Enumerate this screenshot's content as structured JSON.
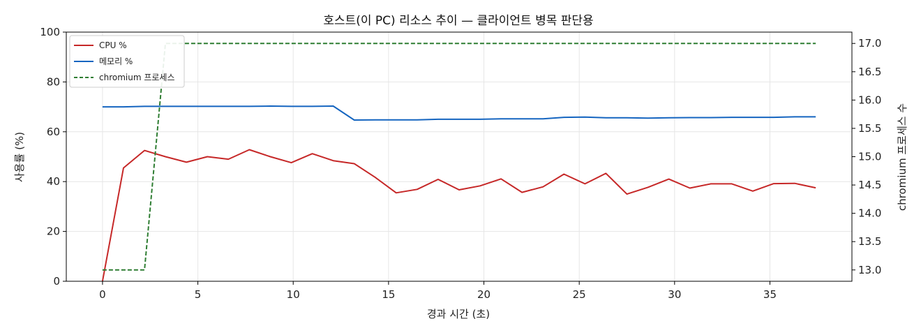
{
  "chart_data": {
    "type": "line",
    "title": "호스트(이 PC) 리소스 추이 — 클라이언트 병목 판단용",
    "xlabel": "경과 시간 (초)",
    "ylabel": "사용률 (%)",
    "y2label": "chromium 프로세스 수",
    "xlim": [
      -1.9,
      39.3
    ],
    "ylim": [
      0,
      100
    ],
    "y2lim": [
      12.8,
      17.2
    ],
    "xticks": [
      0,
      5,
      10,
      15,
      20,
      25,
      30,
      35
    ],
    "yticks": [
      0,
      20,
      40,
      60,
      80,
      100
    ],
    "y2ticks": [
      "13.0",
      "13.5",
      "14.0",
      "14.5",
      "15.0",
      "15.5",
      "16.0",
      "16.5",
      "17.0"
    ],
    "grid": true,
    "legend_position": "top-left",
    "series": [
      {
        "name": "CPU %",
        "axis": "left",
        "color": "#c62828",
        "dash": "solid",
        "x": [
          0,
          1.1,
          2.2,
          3.3,
          4.4,
          5.5,
          6.6,
          7.7,
          8.8,
          9.9,
          11.0,
          12.1,
          13.2,
          14.3,
          15.4,
          16.5,
          17.6,
          18.7,
          19.8,
          20.9,
          22.0,
          23.1,
          24.2,
          25.3,
          26.4,
          27.5,
          28.6,
          29.7,
          30.8,
          31.9,
          33.0,
          34.1,
          35.2,
          36.3,
          37.4
        ],
        "values": [
          0,
          45.5,
          52.5,
          50.0,
          47.8,
          50.0,
          49.0,
          52.8,
          50.0,
          47.6,
          51.2,
          48.4,
          47.2,
          41.7,
          35.5,
          36.9,
          40.9,
          36.7,
          38.3,
          41.1,
          35.7,
          37.9,
          43.0,
          39.1,
          43.3,
          35.0,
          37.7,
          41.0,
          37.4,
          39.1,
          39.1,
          36.2,
          39.2,
          39.3,
          37.5
        ]
      },
      {
        "name": "메모리 %",
        "axis": "left",
        "color": "#1565c0",
        "dash": "solid",
        "x": [
          0,
          1.1,
          2.2,
          3.3,
          4.4,
          5.5,
          6.6,
          7.7,
          8.8,
          9.9,
          11.0,
          12.1,
          13.2,
          14.3,
          15.4,
          16.5,
          17.6,
          18.7,
          19.8,
          20.9,
          22.0,
          23.1,
          24.2,
          25.3,
          26.4,
          27.5,
          28.6,
          29.7,
          30.8,
          31.9,
          33.0,
          34.1,
          35.2,
          36.3,
          37.4
        ],
        "values": [
          70.0,
          70.0,
          70.2,
          70.2,
          70.2,
          70.2,
          70.2,
          70.2,
          70.3,
          70.2,
          70.2,
          70.3,
          64.7,
          64.8,
          64.8,
          64.8,
          65.0,
          65.0,
          65.0,
          65.2,
          65.2,
          65.2,
          65.8,
          65.9,
          65.6,
          65.6,
          65.5,
          65.6,
          65.7,
          65.7,
          65.8,
          65.8,
          65.8,
          66.0,
          66.0
        ]
      },
      {
        "name": "chromium 프로세스",
        "axis": "right",
        "color": "#2e7d32",
        "dash": "dashed",
        "x": [
          0,
          1.1,
          2.2,
          3.3,
          4.4,
          5.5,
          6.6,
          7.7,
          8.8,
          9.9,
          11.0,
          12.1,
          13.2,
          14.3,
          15.4,
          16.5,
          17.6,
          18.7,
          19.8,
          20.9,
          22.0,
          23.1,
          24.2,
          25.3,
          26.4,
          27.5,
          28.6,
          29.7,
          30.8,
          31.9,
          33.0,
          34.1,
          35.2,
          36.3,
          37.4
        ],
        "values": [
          13,
          13,
          13,
          17,
          17,
          17,
          17,
          17,
          17,
          17,
          17,
          17,
          17,
          17,
          17,
          17,
          17,
          17,
          17,
          17,
          17,
          17,
          17,
          17,
          17,
          17,
          17,
          17,
          17,
          17,
          17,
          17,
          17,
          17,
          17
        ]
      }
    ]
  }
}
